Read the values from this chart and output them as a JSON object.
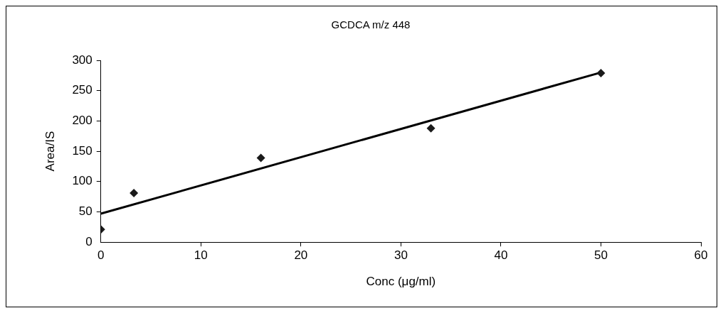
{
  "chart_data": {
    "type": "scatter",
    "title": "GCDCA m/z 448",
    "xlabel": "Conc (μg/ml)",
    "ylabel": "Area/IS",
    "series": [
      {
        "type": "scatter",
        "color": "#1a1a1a",
        "x": [
          0,
          3.3,
          16,
          33,
          50
        ],
        "values": [
          21,
          81,
          139,
          188,
          279
        ],
        "marker": "diamond"
      },
      {
        "type": "line",
        "color": "#000000",
        "x": [
          0,
          50
        ],
        "values": [
          47,
          280
        ],
        "marker": "none"
      }
    ],
    "xlim": [
      0,
      60
    ],
    "xticks": [
      0,
      10,
      20,
      30,
      40,
      50,
      60
    ],
    "ylim": [
      0,
      300
    ],
    "yticks": [
      0,
      50,
      100,
      150,
      200,
      250,
      300
    ],
    "grid": false,
    "legend": false
  }
}
